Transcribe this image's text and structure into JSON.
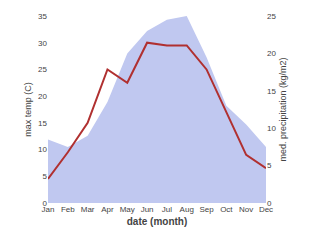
{
  "chart_data": {
    "type": "line",
    "categories": [
      "Jan",
      "Feb",
      "Mar",
      "Apr",
      "May",
      "Jun",
      "Jul",
      "Aug",
      "Sep",
      "Oct",
      "Nov",
      "Dec"
    ],
    "series": [
      {
        "type": "area",
        "axis": "y2",
        "color": "#c0c8f0",
        "values": [
          8.5,
          7.5,
          9.0,
          13.5,
          20.0,
          23.0,
          24.5,
          25.0,
          19.5,
          13.0,
          10.5,
          7.5
        ]
      },
      {
        "type": "line",
        "color": "#b03030",
        "values": [
          4.5,
          9.5,
          15.0,
          25.0,
          22.5,
          30.0,
          29.5,
          29.5,
          25.0,
          17.0,
          9.0,
          6.5
        ]
      }
    ],
    "xlabel": "date (month)",
    "ylabel": "max temp (C)",
    "y2label": "med. precipitation (kg/m2)",
    "ylim": [
      0,
      35
    ],
    "yticks": [
      0,
      5,
      10,
      15,
      20,
      25,
      30,
      35
    ],
    "y2lim": [
      0,
      25
    ],
    "y2ticks": [
      0,
      5,
      10,
      15,
      20,
      25
    ],
    "grid": false
  }
}
